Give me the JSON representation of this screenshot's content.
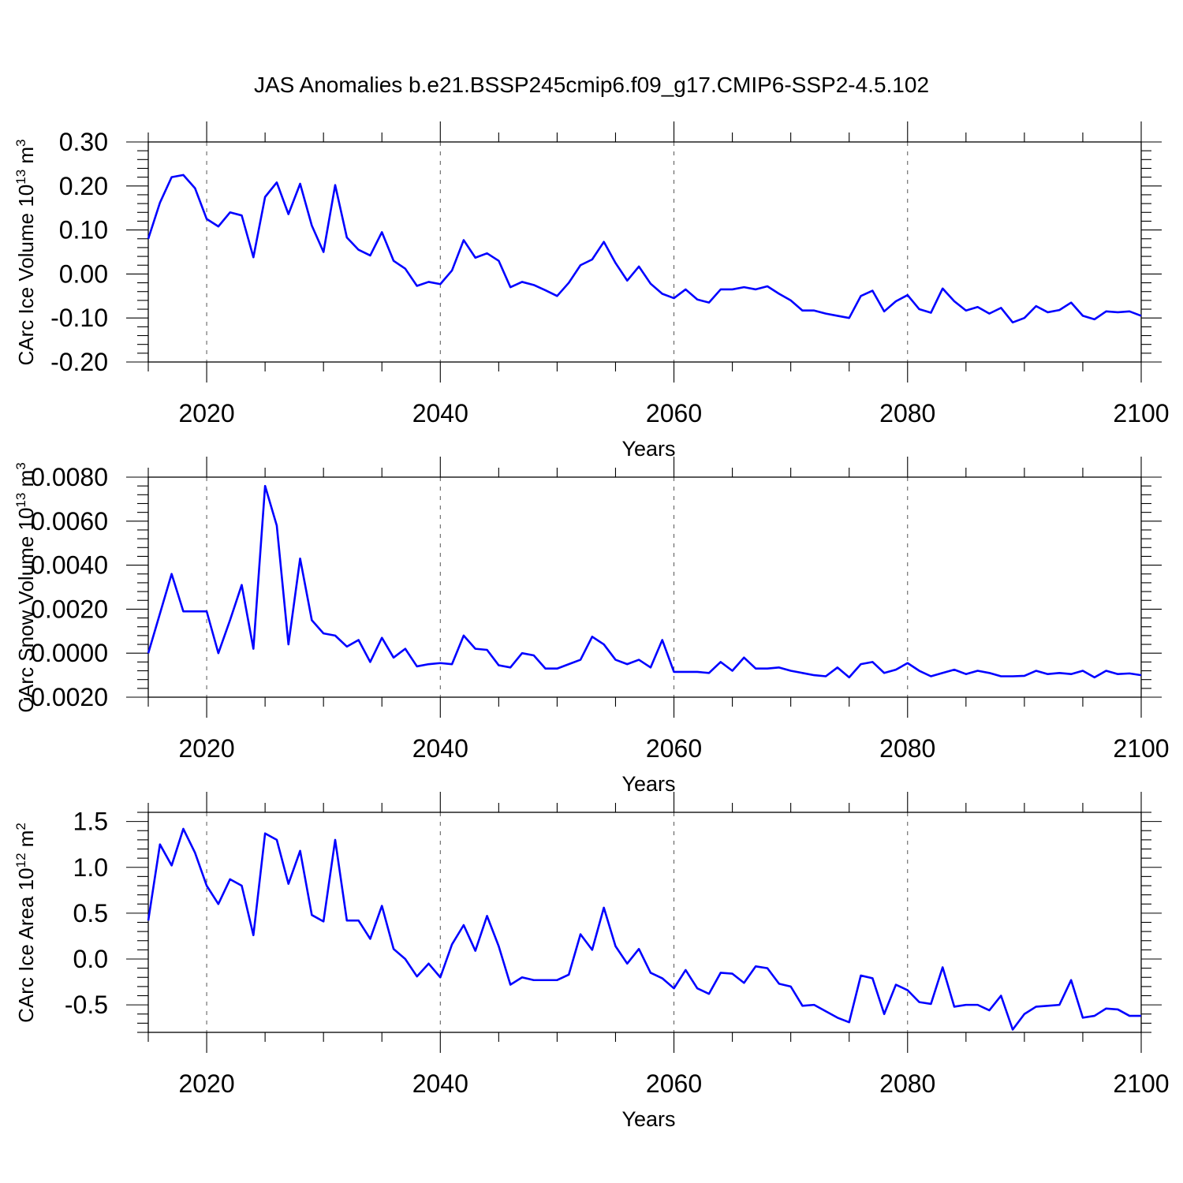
{
  "chart_data": [
    {
      "type": "line",
      "title": "JAS Anomalies b.e21.BSSP245cmip6.f09_g17.CMIP6-SSP2-4.5.102",
      "xlabel": "Years",
      "ylabel": "CArc Ice Volume 10",
      "ylabel_exp": "13",
      "ylabel_unit": "m",
      "ylabel_unit_exp": "3",
      "xlim": [
        2015,
        2100
      ],
      "ylim": [
        -0.2,
        0.3
      ],
      "x_ticks": [
        2020,
        2040,
        2060,
        2080,
        2100
      ],
      "x_tick_labels": [
        "2020",
        "2040",
        "2060",
        "2080",
        "2100"
      ],
      "y_ticks": [
        0.3,
        0.2,
        0.1,
        0.0,
        -0.1,
        -0.2
      ],
      "y_tick_labels": [
        "0.30",
        "0.20",
        "0.10",
        "0.00",
        "-0.10",
        "-0.20"
      ],
      "y_minor_step": 0.02,
      "grid": "vertical dashed at major x ticks",
      "color": "#0000ff",
      "x_start": 2015,
      "x_step": 1,
      "values": [
        0.08,
        0.162,
        0.22,
        0.225,
        0.195,
        0.125,
        0.108,
        0.14,
        0.133,
        0.038,
        0.175,
        0.208,
        0.136,
        0.205,
        0.11,
        0.05,
        0.202,
        0.083,
        0.055,
        0.042,
        0.095,
        0.03,
        0.012,
        -0.027,
        -0.018,
        -0.023,
        0.008,
        0.077,
        0.037,
        0.047,
        0.03,
        -0.03,
        -0.018,
        -0.025,
        -0.037,
        -0.05,
        -0.02,
        0.02,
        0.033,
        0.073,
        0.025,
        -0.015,
        0.017,
        -0.022,
        -0.045,
        -0.055,
        -0.035,
        -0.058,
        -0.065,
        -0.035,
        -0.035,
        -0.03,
        -0.035,
        -0.028,
        -0.045,
        -0.06,
        -0.083,
        -0.083,
        -0.09,
        -0.095,
        -0.1,
        -0.05,
        -0.038,
        -0.085,
        -0.062,
        -0.048,
        -0.08,
        -0.088,
        -0.033,
        -0.062,
        -0.083,
        -0.075,
        -0.09,
        -0.077,
        -0.11,
        -0.1,
        -0.073,
        -0.087,
        -0.082,
        -0.065,
        -0.095,
        -0.103,
        -0.085,
        -0.087,
        -0.085,
        -0.095
      ]
    },
    {
      "type": "line",
      "xlabel": "Years",
      "ylabel": "CArc Snow Volume 10",
      "ylabel_exp": "13",
      "ylabel_unit": "m",
      "ylabel_unit_exp": "3",
      "xlim": [
        2015,
        2100
      ],
      "ylim": [
        -0.002,
        0.008
      ],
      "x_ticks": [
        2020,
        2040,
        2060,
        2080,
        2100
      ],
      "x_tick_labels": [
        "2020",
        "2040",
        "2060",
        "2080",
        "2100"
      ],
      "y_ticks": [
        0.008,
        0.006,
        0.004,
        0.002,
        0.0,
        -0.002
      ],
      "y_tick_labels": [
        "0.0080",
        "0.0060",
        "0.0040",
        "0.0020",
        "0.0000",
        "-0.0020"
      ],
      "y_minor_step": 0.0004,
      "grid": "vertical dashed at major x ticks",
      "color": "#0000ff",
      "x_start": 2015,
      "x_step": 1,
      "values": [
        0.0,
        0.0018,
        0.0036,
        0.0019,
        0.0019,
        0.0019,
        0.0,
        0.0015,
        0.0031,
        0.0002,
        0.0076,
        0.0058,
        0.0004,
        0.0043,
        0.0015,
        0.0009,
        0.0008,
        0.0003,
        0.0006,
        -0.0004,
        0.0007,
        -0.0002,
        0.0002,
        -0.0006,
        -0.0005,
        -0.00045,
        -0.0005,
        0.0008,
        0.0002,
        0.00015,
        -0.00055,
        -0.00065,
        0.0,
        -0.0001,
        -0.0007,
        -0.0007,
        -0.0005,
        -0.0003,
        0.00075,
        0.0004,
        -0.0003,
        -0.0005,
        -0.0003,
        -0.00065,
        0.0006,
        -0.00085,
        -0.00085,
        -0.00085,
        -0.0009,
        -0.0004,
        -0.0008,
        -0.0002,
        -0.0007,
        -0.0007,
        -0.00065,
        -0.0008,
        -0.0009,
        -0.001,
        -0.00105,
        -0.00065,
        -0.0011,
        -0.0005,
        -0.0004,
        -0.0009,
        -0.00075,
        -0.00045,
        -0.0008,
        -0.00105,
        -0.0009,
        -0.00075,
        -0.00095,
        -0.0008,
        -0.0009,
        -0.00105,
        -0.00105,
        -0.00103,
        -0.0008,
        -0.00095,
        -0.0009,
        -0.00095,
        -0.0008,
        -0.0011,
        -0.0008,
        -0.00095,
        -0.00092,
        -0.001
      ]
    },
    {
      "type": "line",
      "xlabel": "Years",
      "ylabel": "CArc Ice Area 10",
      "ylabel_exp": "12",
      "ylabel_unit": "m",
      "ylabel_unit_exp": "2",
      "xlim": [
        2015,
        2100
      ],
      "ylim": [
        -0.8,
        1.6
      ],
      "x_ticks": [
        2020,
        2040,
        2060,
        2080,
        2100
      ],
      "x_tick_labels": [
        "2020",
        "2040",
        "2060",
        "2080",
        "2100"
      ],
      "y_ticks": [
        1.5,
        1.0,
        0.5,
        0.0,
        -0.5
      ],
      "y_tick_labels": [
        "1.5",
        "1.0",
        "0.5",
        "0.0",
        "-0.5"
      ],
      "y_minor_step": 0.1,
      "grid": "vertical dashed at major x ticks",
      "color": "#0000ff",
      "x_start": 2015,
      "x_step": 1,
      "values": [
        0.42,
        1.25,
        1.02,
        1.42,
        1.16,
        0.8,
        0.6,
        0.87,
        0.8,
        0.26,
        1.37,
        1.3,
        0.82,
        1.18,
        0.48,
        0.41,
        1.3,
        0.42,
        0.42,
        0.22,
        0.58,
        0.11,
        0.0,
        -0.19,
        -0.05,
        -0.2,
        0.16,
        0.37,
        0.09,
        0.47,
        0.14,
        -0.28,
        -0.2,
        -0.23,
        -0.23,
        -0.23,
        -0.17,
        0.27,
        0.1,
        0.56,
        0.14,
        -0.05,
        0.11,
        -0.15,
        -0.21,
        -0.32,
        -0.12,
        -0.32,
        -0.38,
        -0.15,
        -0.16,
        -0.26,
        -0.08,
        -0.1,
        -0.27,
        -0.3,
        -0.51,
        -0.5,
        -0.57,
        -0.64,
        -0.69,
        -0.18,
        -0.21,
        -0.6,
        -0.28,
        -0.34,
        -0.47,
        -0.49,
        -0.09,
        -0.52,
        -0.5,
        -0.5,
        -0.56,
        -0.4,
        -0.77,
        -0.6,
        -0.52,
        -0.51,
        -0.5,
        -0.23,
        -0.64,
        -0.62,
        -0.54,
        -0.55,
        -0.62,
        -0.62
      ]
    }
  ]
}
